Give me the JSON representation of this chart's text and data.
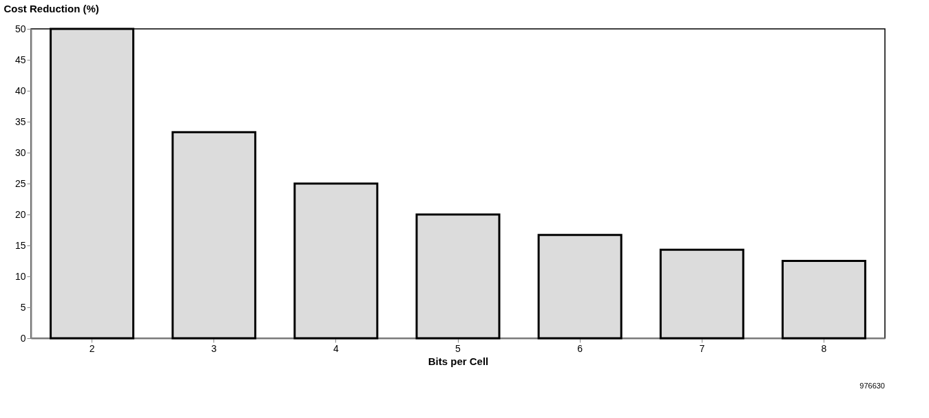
{
  "chart_data": {
    "type": "bar",
    "ylabel": "Cost Reduction (%)",
    "xlabel": "Bits per Cell",
    "categories": [
      "2",
      "3",
      "4",
      "5",
      "6",
      "7",
      "8"
    ],
    "values": [
      50,
      33.3,
      25,
      20,
      16.7,
      14.3,
      12.5
    ],
    "color": "#dcdcdc",
    "ylim": [
      0,
      50
    ],
    "yticks": [
      0,
      5,
      10,
      15,
      20,
      25,
      30,
      35,
      40,
      45,
      50
    ],
    "grid": false,
    "annotations": [
      "976630"
    ]
  }
}
